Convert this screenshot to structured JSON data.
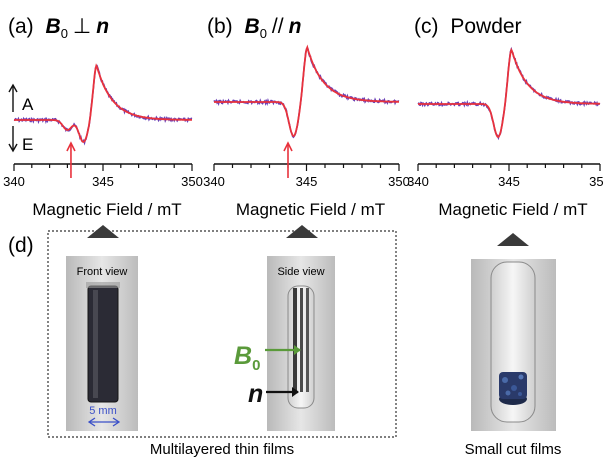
{
  "panels": [
    {
      "label": "(a)",
      "title_b": "B",
      "title_sub": "0",
      "title_rel": "⊥",
      "title_n": "n"
    },
    {
      "label": "(b)",
      "title_b": "B",
      "title_sub": "0",
      "title_rel": "//",
      "title_n": "n"
    },
    {
      "label": "(c)",
      "title_text": "Powder"
    }
  ],
  "axis": {
    "ticks": [
      340,
      345,
      350
    ],
    "tick_labels": [
      "340",
      "345",
      "350"
    ],
    "xlabel": "Magnetic Field / mT",
    "xlim": [
      340,
      350
    ]
  },
  "ae_labels": {
    "top": "A",
    "bottom": "E"
  },
  "marker_fields": {
    "a": 343.2,
    "b": 344.0
  },
  "panel_d": {
    "label": "(d)",
    "front_view": "Front view",
    "side_view": "Side view",
    "scale": "5 mm",
    "b0_letter": "B",
    "b0_sub": "0",
    "n_letter": "n",
    "caption_left": "Multilayered thin films",
    "caption_right": "Small cut films"
  },
  "colors": {
    "sim_line": "#e8323c",
    "exp_line": "#6a3fb5",
    "marker": "#e8323c",
    "b0_arrow": "#5a9a3a",
    "scale_arrow": "#3a4fc8"
  }
}
